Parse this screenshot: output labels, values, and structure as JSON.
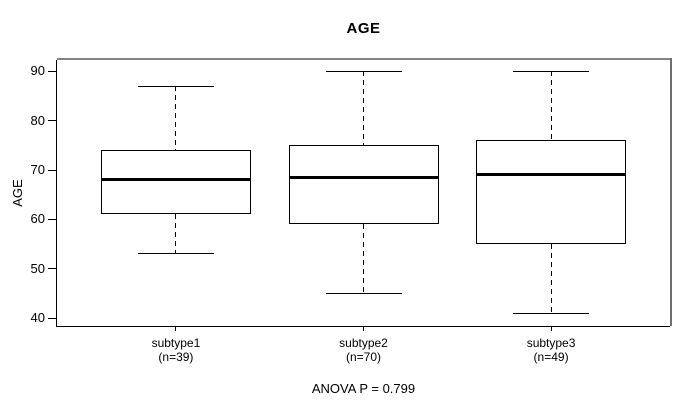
{
  "figure": {
    "title": "AGE",
    "y_axis_label": "AGE",
    "annotation": "ANOVA P = 0.799"
  },
  "chart_data": {
    "type": "boxplot",
    "title": "AGE",
    "xlabel": "",
    "ylabel": "AGE",
    "ylim": [
      38.4,
      92.3
    ],
    "yticks": [
      40,
      50,
      60,
      70,
      80,
      90
    ],
    "grid": false,
    "legend": "none",
    "annotation": "ANOVA P = 0.799",
    "categories": [
      "subtype1",
      "subtype2",
      "subtype3"
    ],
    "groups": [
      {
        "label": "subtype1",
        "sublabel": "(n=39)",
        "n": 39,
        "whisker_low": 53,
        "q1": 61,
        "median": 68,
        "q3": 74,
        "whisker_high": 87
      },
      {
        "label": "subtype2",
        "sublabel": "(n=70)",
        "n": 70,
        "whisker_low": 45,
        "q1": 59,
        "median": 68.5,
        "q3": 75,
        "whisker_high": 90
      },
      {
        "label": "subtype3",
        "sublabel": "(n=49)",
        "n": 49,
        "whisker_low": 41,
        "q1": 55,
        "median": 69,
        "q3": 76,
        "whisker_high": 90
      }
    ],
    "colors": {
      "background": "#ffffff",
      "box_fill": "#ffffff",
      "box_border": "#000000",
      "median": "#000000",
      "whisker": "#000000",
      "axis": "#000000",
      "frame_top": "#848484",
      "frame_right": "#6e6e6e",
      "text": "#000000"
    }
  }
}
